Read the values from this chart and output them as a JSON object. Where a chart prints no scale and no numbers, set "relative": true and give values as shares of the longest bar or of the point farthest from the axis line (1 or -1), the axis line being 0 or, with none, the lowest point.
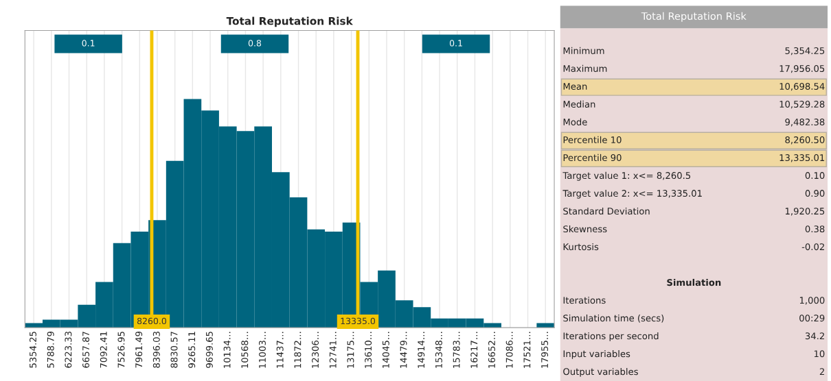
{
  "chart_data": [
    {
      "type": "bar",
      "title": "Total Reputation Risk",
      "relative": true,
      "color": "#00657f",
      "x": [
        5354.25,
        5788.79,
        6223.33,
        6657.87,
        7092.41,
        7526.95,
        7961.49,
        8396.03,
        8830.57,
        9265.11,
        9699.65,
        10134.19,
        10568.73,
        11003.27,
        11437.81,
        11872.35,
        12306.89,
        12741.43,
        13175.97,
        13610.51,
        14045.05,
        14479.59,
        14914.13,
        15348.67,
        15783.21,
        16217.75,
        16652.29,
        17086.83,
        17521.37,
        17955.91
      ],
      "values": [
        0.02,
        0.035,
        0.035,
        0.1,
        0.2,
        0.37,
        0.42,
        0.47,
        0.73,
        1,
        0.95,
        0.88,
        0.86,
        0.88,
        0.68,
        0.57,
        0.43,
        0.42,
        0.46,
        0.2,
        0.25,
        0.12,
        0.09,
        0.04,
        0.04,
        0.04,
        0.02,
        0,
        0,
        0.02
      ],
      "xlim": [
        5136.98,
        18173.18
      ],
      "xticks": [
        {
          "value": 5354.25,
          "label": "5354.25"
        },
        {
          "value": 5788.79,
          "label": "5788.79"
        },
        {
          "value": 6223.33,
          "label": "6223.33"
        },
        {
          "value": 6657.87,
          "label": "6657.87"
        },
        {
          "value": 7092.41,
          "label": "7092.41"
        },
        {
          "value": 7526.95,
          "label": "7526.95"
        },
        {
          "value": 7961.49,
          "label": "7961.49"
        },
        {
          "value": 8396.03,
          "label": "8396.03"
        },
        {
          "value": 8830.57,
          "label": "8830.57"
        },
        {
          "value": 9265.11,
          "label": "9265.11"
        },
        {
          "value": 9699.65,
          "label": "9699.65"
        },
        {
          "value": 10134.19,
          "label": "10134…"
        },
        {
          "value": 10568.73,
          "label": "10568…"
        },
        {
          "value": 11003.27,
          "label": "11003…"
        },
        {
          "value": 11437.81,
          "label": "11437…"
        },
        {
          "value": 11872.35,
          "label": "11872…"
        },
        {
          "value": 12306.89,
          "label": "12306…"
        },
        {
          "value": 12741.43,
          "label": "12741…"
        },
        {
          "value": 13175.97,
          "label": "13175…"
        },
        {
          "value": 13610.51,
          "label": "13610…"
        },
        {
          "value": 14045.05,
          "label": "14045…"
        },
        {
          "value": 14479.59,
          "label": "14479…"
        },
        {
          "value": 14914.13,
          "label": "14914…"
        },
        {
          "value": 15348.67,
          "label": "15348…"
        },
        {
          "value": 15783.21,
          "label": "15783…"
        },
        {
          "value": 16217.75,
          "label": "16217…"
        },
        {
          "value": 16652.29,
          "label": "16652…"
        },
        {
          "value": 17086.83,
          "label": "17086…"
        },
        {
          "value": 17521.37,
          "label": "17521…"
        },
        {
          "value": 17955.91,
          "label": "17955…"
        }
      ],
      "grid": "x",
      "ref_lines": [
        {
          "axis": "x",
          "value": 8260.0,
          "label": "8260.0",
          "color": "#f2c500"
        },
        {
          "axis": "x",
          "value": 13335.0,
          "label": "13335.0",
          "color": "#f2c500"
        }
      ],
      "annotations": [
        "0.1",
        "0.8",
        "0.1"
      ]
    },
    {
      "type": "other",
      "title": "Total Reputation Risk",
      "categories": [
        "Minimum",
        "Maximum",
        "Mean",
        "Median",
        "Mode",
        "Percentile 10",
        "Percentile 90",
        "Target value 1: x<= 8,260.5",
        "Target value 2: x<= 13,335.01",
        "Standard Deviation",
        "Skewness",
        "Kurtosis",
        "Simulation",
        "Iterations",
        "Simulation time (secs)",
        "Iterations per second",
        "Input variables",
        "Output variables"
      ],
      "value_labels": [
        "5,354.25",
        "17,956.05",
        "10,698.54",
        "10,529.28",
        "9,482.38",
        "8,260.50",
        "13,335.01",
        "0.10",
        "0.90",
        "1,920.25",
        "0.38",
        "-0.02",
        null,
        "1,000",
        "00:29",
        "34.2",
        "10",
        "2"
      ],
      "colors": [
        "#ead9d9",
        "#ead9d9",
        "#f0d8a0",
        "#ead9d9",
        "#ead9d9",
        "#f0d8a0",
        "#f0d8a0",
        "#ead9d9",
        "#ead9d9",
        "#ead9d9",
        "#ead9d9",
        "#ead9d9",
        "#ead9d9",
        "#ead9d9",
        "#ead9d9",
        "#ead9d9",
        "#ead9d9",
        "#ead9d9"
      ]
    }
  ]
}
